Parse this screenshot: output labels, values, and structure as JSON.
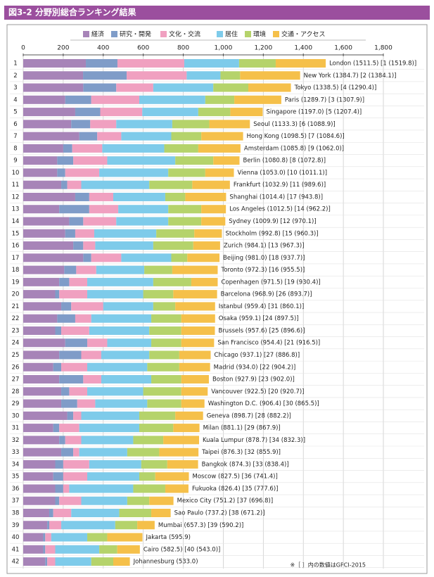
{
  "chart_data": {
    "type": "stacked-bar",
    "title": "図3-2  分野別総合ランキング結果",
    "footnote": "※［ ］内の数値はGPCI-2015",
    "ranks": [
      1,
      2,
      3,
      4,
      5,
      6,
      7,
      8,
      9,
      10,
      11,
      12,
      13,
      14,
      15,
      16,
      17,
      18,
      19,
      20,
      21,
      22,
      23,
      24,
      25,
      26,
      27,
      28,
      29,
      30,
      31,
      32,
      33,
      34,
      35,
      36,
      37,
      38,
      39,
      40,
      41,
      42
    ],
    "categories": [
      "London (1511.5) [1 (1519.8)]",
      "New York (1384.7) [2 (1384.1)]",
      "Tokyo (1338.5) [4 (1290.4)]",
      "Paris (1289.7) [3 (1307.9)]",
      "Singapore (1197.0) [5 (1207.4)]",
      "Seoul (1133.3) [6 (1088.9)]",
      "Hong Kong (1098.5) [7 (1084.6)]",
      "Amsterdam (1085.8) [9 (1062.0)]",
      "Berlin (1080.8) [8 (1072.8)]",
      "Vienna (1053.0) [10 (1011.1)]",
      "Frankfurt (1032.9) [11 (989.6)]",
      "Shanghai (1014.4) [17 (943.8)]",
      "Los Angeles (1012.5) [14 (962.2)]",
      "Sydney (1009.9) [12 (970.1)]",
      "Stockholm (992.8) [15 (960.3)]",
      "Zurich (984.1) [13 (967.3)]",
      "Beijing (981.0) [18 (937.7)]",
      "Toronto (972.3) [16 (955.5)]",
      "Copenhagen (971.5) [19 (930.4)]",
      "Barcelona (968.9) [26 (893.7)]",
      "Istanbul (959.4) [31 (860.1)]",
      "Osaka (959.1) [24 (897.5)]",
      "Brussels (957.6) [25 (896.6)]",
      "San Francisco (954.4) [21 (916.5)]",
      "Chicago (937.1) [27 (886.8)]",
      "Madrid (934.0) [22 (904.2)]",
      "Boston (927.9) [23 (902.0)]",
      "Vancouver (922.5) [20 (920.7)]",
      "Washington D.C. (906.4) [30 (865.5)]",
      "Geneva (898.7) [28 (882.2)]",
      "Milan (881.1) [29 (867.9)]",
      "Kuala Lumpur (878.7) [34 (832.3)]",
      "Taipei (876.3) [32 (855.9)]",
      "Bangkok (874.3) [33 (838.4)]",
      "Moscow (827.5) [36 (741.4)]",
      "Fukuoka (826.4) [35 (777.6)]",
      "Mexico City (751.2) [37 (696.8)]",
      "Sao Paulo (737.2) [38 (671.2)]",
      "Mumbai (657.3) [39 (590.2)]",
      "Jakarta (595.9)",
      "Cairo (582.5) [40 (543.0)]",
      "Johannesburg (533.0)"
    ],
    "series": [
      {
        "name": "経済",
        "color": "#a784b8",
        "values": [
          313,
          299,
          300,
          210,
          260,
          240,
          280,
          200,
          170,
          170,
          190,
          260,
          180,
          230,
          210,
          250,
          300,
          205,
          180,
          160,
          190,
          170,
          160,
          210,
          180,
          150,
          180,
          190,
          190,
          220,
          150,
          180,
          190,
          160,
          150,
          160,
          160,
          130,
          120,
          100,
          100,
          110
        ]
      },
      {
        "name": "研究・開発",
        "color": "#7f9cc8",
        "values": [
          158,
          218,
          165,
          130,
          125,
          95,
          90,
          45,
          80,
          40,
          30,
          70,
          150,
          70,
          50,
          50,
          40,
          60,
          50,
          20,
          50,
          90,
          30,
          110,
          110,
          40,
          120,
          40,
          80,
          30,
          30,
          30,
          60,
          40,
          50,
          40,
          20,
          20,
          10,
          10,
          10,
          10
        ]
      },
      {
        "name": "文化・交流",
        "color": "#f0a0c0",
        "values": [
          334,
          300,
          185,
          240,
          210,
          130,
          120,
          150,
          170,
          170,
          70,
          120,
          145,
          165,
          95,
          60,
          150,
          100,
          90,
          140,
          160,
          80,
          140,
          100,
          100,
          130,
          90,
          90,
          90,
          40,
          100,
          80,
          30,
          130,
          120,
          30,
          110,
          90,
          60,
          30,
          50,
          40
        ]
      },
      {
        "name": "居住",
        "color": "#7ecbea",
        "values": [
          274,
          169,
          300,
          330,
          280,
          280,
          250,
          310,
          340,
          345,
          340,
          260,
          250,
          260,
          310,
          290,
          250,
          240,
          330,
          280,
          250,
          300,
          300,
          220,
          240,
          300,
          250,
          280,
          260,
          290,
          300,
          260,
          240,
          260,
          260,
          320,
          230,
          240,
          270,
          180,
          220,
          180
        ]
      },
      {
        "name": "環境",
        "color": "#b5d36b",
        "values": [
          183,
          98,
          175,
          145,
          160,
          185,
          150,
          170,
          190,
          185,
          215,
          100,
          165,
          165,
          190,
          200,
          80,
          140,
          190,
          150,
          110,
          150,
          160,
          150,
          150,
          160,
          150,
          190,
          170,
          180,
          170,
          150,
          160,
          130,
          80,
          160,
          110,
          160,
          110,
          100,
          90,
          110
        ]
      },
      {
        "name": "交通・アクセス",
        "color": "#f5c04a",
        "values": [
          250,
          300,
          213,
          235,
          162,
          203,
          209,
          211,
          131,
          143,
          188,
          204,
          123,
          120,
          138,
          134,
          161,
          227,
          132,
          219,
          199,
          169,
          168,
          164,
          157,
          154,
          138,
          132,
          116,
          139,
          131,
          179,
          196,
          154,
          168,
          116,
          121,
          97,
          87,
          176,
          113,
          83
        ]
      }
    ],
    "xlim": [
      0,
      1800
    ],
    "xticks": [
      0,
      200,
      400,
      600,
      800,
      {
        "value": 1000,
        "label": "1,000"
      },
      {
        "value": 1200,
        "label": "1,200"
      },
      {
        "value": 1400,
        "label": "1,400"
      },
      {
        "value": 1600,
        "label": "1,600"
      },
      {
        "value": 1800,
        "label": "1,800"
      }
    ],
    "grid": true
  }
}
